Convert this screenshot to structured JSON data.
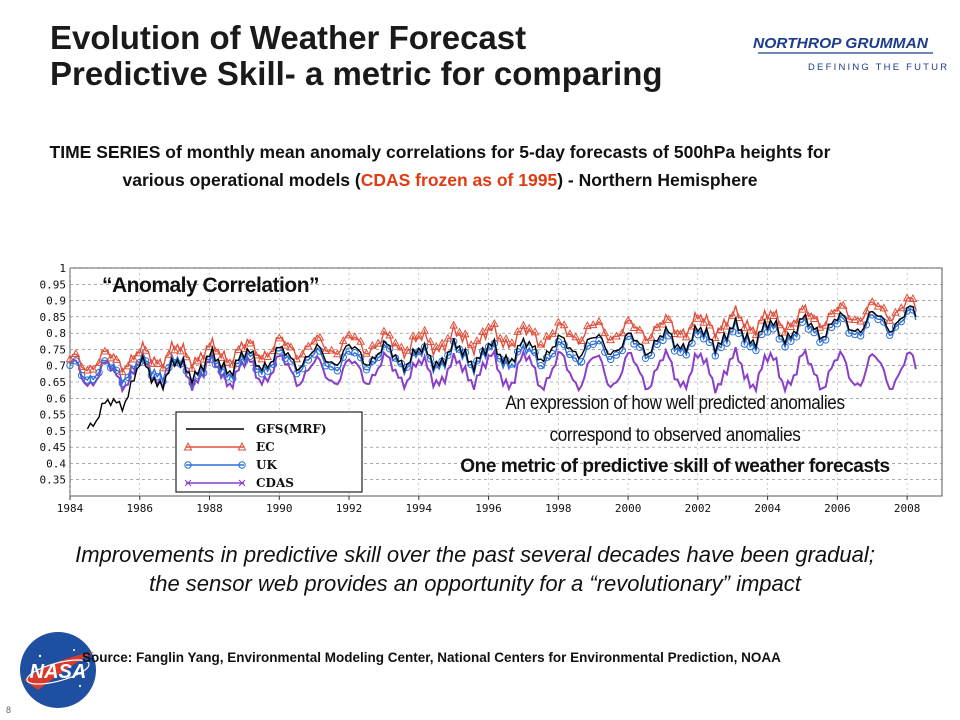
{
  "slide": {
    "title_line1": "Evolution of Weather Forecast",
    "title_line2": "Predictive Skill- a metric for comparing",
    "brand_name": "NORTHROP GRUMMAN",
    "brand_tagline": "DEFINING THE FUTURE",
    "subtitle_part1": "TIME SERIES of monthly mean anomaly correlations for 5-day forecasts of 500hPa heights for various operational models (",
    "subtitle_red": "CDAS frozen as of 1995",
    "subtitle_part2": ") - Northern Hemisphere",
    "annotation_line1": "An expression of how well predicted anomalies",
    "annotation_line2": "correspond to observed anomalies",
    "annotation_line3": "One metric of predictive skill of weather forecasts",
    "improvement_text": "Improvements in predictive skill over the past several decades have been gradual; the sensor web provides an opportunity for a “revolutionary” impact",
    "source": "Source: Fanglin Yang, Environmental Modeling Center, National Centers for Environmental Prediction, NOAA",
    "page_number": "8",
    "nasa_logo_text": "NASA",
    "colors": {
      "title": "#1a1a1a",
      "red_text": "#e23a12",
      "brand_blue": "#1e3c8c"
    }
  },
  "chart_data": {
    "type": "line",
    "title": "“Anomaly Correlation”",
    "xlabel": "",
    "ylabel": "",
    "xlim": [
      1984,
      2009
    ],
    "ylim": [
      0.3,
      1.0
    ],
    "x_ticks": [
      "1984",
      "1986",
      "1988",
      "1990",
      "1992",
      "1994",
      "1996",
      "1998",
      "2000",
      "2002",
      "2004",
      "2006",
      "2008"
    ],
    "y_ticks": [
      "1",
      "0.95",
      "0.9",
      "0.85",
      "0.8",
      "0.75",
      "0.7",
      "0.65",
      "0.6",
      "0.55",
      "0.5",
      "0.45",
      "0.4",
      "0.35"
    ],
    "grid": true,
    "legend_position": "lower-left",
    "series": [
      {
        "name": "GFS(MRF)",
        "color": "#000000",
        "marker": "none",
        "x": [
          1984.5,
          1985,
          1985.5,
          1986,
          1986.5,
          1987,
          1988,
          1989,
          1990,
          1991,
          1992,
          1993,
          1994,
          1995,
          1996,
          1997,
          1998,
          1999,
          2000,
          2001,
          2002,
          2003,
          2004,
          2005,
          2006,
          2007,
          2008,
          2008.3
        ],
        "y": [
          0.55,
          0.57,
          0.62,
          0.7,
          0.68,
          0.7,
          0.72,
          0.73,
          0.74,
          0.74,
          0.75,
          0.75,
          0.74,
          0.75,
          0.75,
          0.76,
          0.77,
          0.78,
          0.78,
          0.79,
          0.8,
          0.81,
          0.82,
          0.83,
          0.84,
          0.85,
          0.86,
          0.87
        ]
      },
      {
        "name": "EC",
        "color": "#e0503c",
        "marker": "triangle",
        "x": [
          1984,
          1985,
          1986,
          1987,
          1988,
          1989,
          1990,
          1991,
          1992,
          1993,
          1994,
          1995,
          1996,
          1997,
          1998,
          1999,
          2000,
          2001,
          2002,
          2003,
          2004,
          2005,
          2006,
          2007,
          2008,
          2008.3
        ],
        "y": [
          0.72,
          0.73,
          0.74,
          0.75,
          0.75,
          0.76,
          0.77,
          0.77,
          0.78,
          0.78,
          0.78,
          0.79,
          0.8,
          0.8,
          0.81,
          0.82,
          0.82,
          0.83,
          0.84,
          0.85,
          0.85,
          0.86,
          0.87,
          0.88,
          0.89,
          0.89
        ]
      },
      {
        "name": "UK",
        "color": "#2a6fd6",
        "marker": "circle",
        "x": [
          1984,
          1985,
          1986,
          1987,
          1988,
          1989,
          1990,
          1991,
          1992,
          1993,
          1994,
          1995,
          1996,
          1997,
          1998,
          1999,
          2000,
          2001,
          2002,
          2003,
          2004,
          2005,
          2006,
          2007,
          2008,
          2008.3
        ],
        "y": [
          0.7,
          0.7,
          0.71,
          0.71,
          0.71,
          0.72,
          0.73,
          0.73,
          0.73,
          0.74,
          0.73,
          0.74,
          0.74,
          0.74,
          0.75,
          0.76,
          0.77,
          0.78,
          0.79,
          0.8,
          0.81,
          0.82,
          0.83,
          0.84,
          0.85,
          0.86
        ]
      },
      {
        "name": "CDAS",
        "color": "#8a3fc8",
        "marker": "x",
        "x": [
          1984,
          1985,
          1986,
          1987,
          1988,
          1989,
          1990,
          1991,
          1992,
          1993,
          1994,
          1995,
          1996,
          1997,
          1998,
          1999,
          2000,
          2001,
          2002,
          2003,
          2004,
          2005,
          2006,
          2007,
          2008,
          2008.3
        ],
        "y": [
          0.7,
          0.69,
          0.7,
          0.7,
          0.7,
          0.7,
          0.71,
          0.7,
          0.7,
          0.71,
          0.7,
          0.7,
          0.71,
          0.71,
          0.71,
          0.71,
          0.71,
          0.71,
          0.71,
          0.71,
          0.71,
          0.71,
          0.71,
          0.71,
          0.71,
          0.71
        ]
      }
    ]
  }
}
